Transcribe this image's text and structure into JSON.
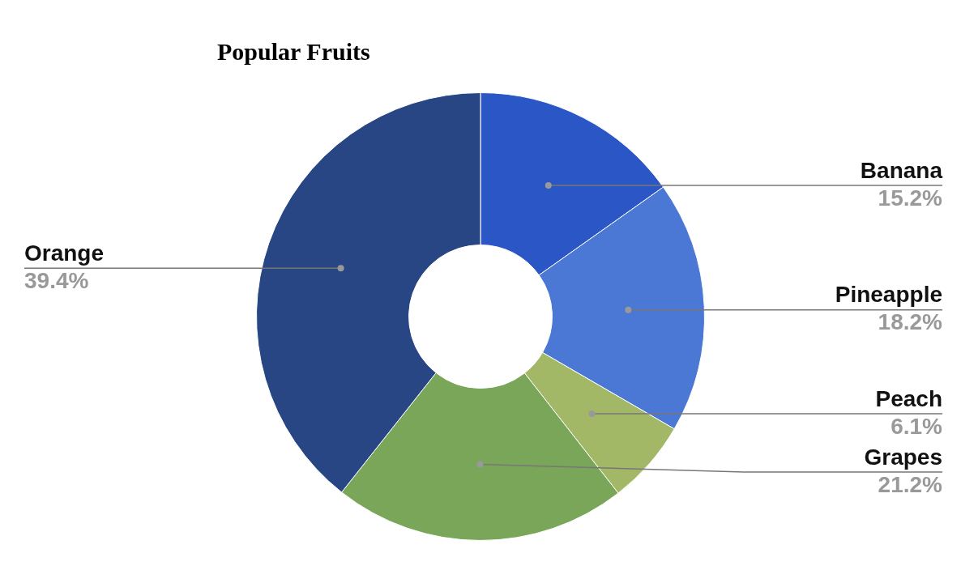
{
  "chart_data": {
    "type": "donut",
    "title": "Popular Fruits",
    "categories": [
      "Banana",
      "Pineapple",
      "Peach",
      "Grapes",
      "Orange"
    ],
    "values": [
      15.2,
      18.2,
      6.1,
      21.2,
      39.4
    ],
    "colors": [
      "#2a56c6",
      "#4a78d4",
      "#a3b866",
      "#7aa65a",
      "#284683"
    ],
    "value_labels": [
      "15.2%",
      "18.2%",
      "6.1%",
      "21.2%",
      "39.4%"
    ],
    "legend": false
  }
}
